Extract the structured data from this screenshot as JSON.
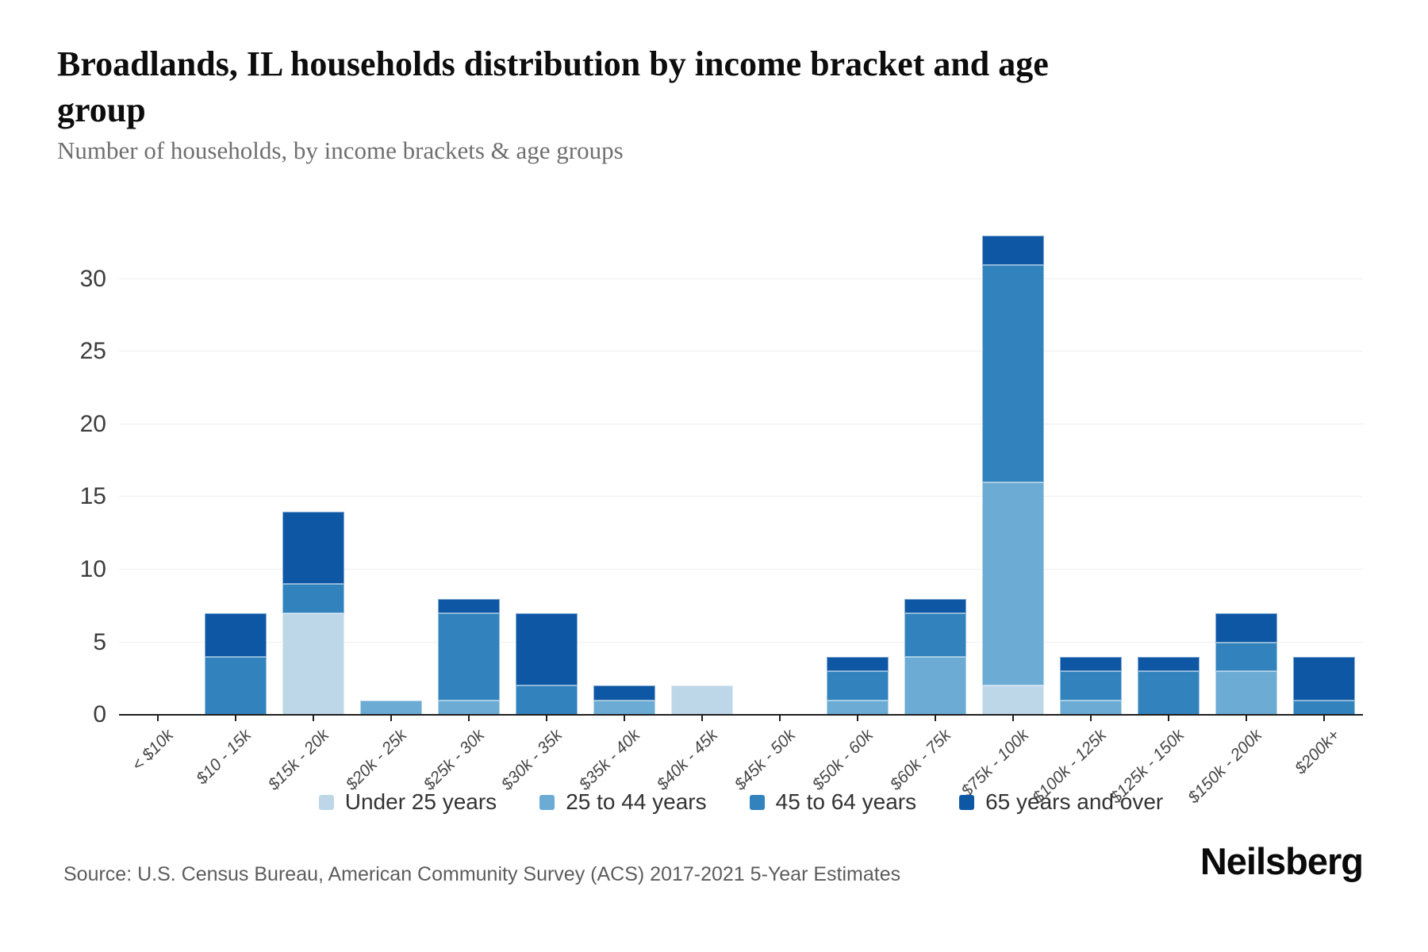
{
  "header": {
    "title": "Broadlands, IL households distribution by income bracket and age group",
    "subtitle": "Number of households, by income brackets & age groups"
  },
  "chart_data": {
    "type": "bar",
    "subtype": "stacked",
    "title": "Broadlands, IL households distribution by income bracket and age group",
    "xlabel": "",
    "ylabel": "",
    "ylim": [
      0,
      33
    ],
    "yticks": [
      0,
      5,
      10,
      15,
      20,
      25,
      30
    ],
    "grid": "horizontal",
    "legend_position": "bottom-center",
    "categories": [
      "< $10k",
      "$10 - 15k",
      "$15k - 20k",
      "$20k - 25k",
      "$25k - 30k",
      "$30k - 35k",
      "$35k - 40k",
      "$40k - 45k",
      "$45k - 50k",
      "$50k - 60k",
      "$60k - 75k",
      "$75k - 100k",
      "$100k - 125k",
      "$125k - 150k",
      "$150k - 200k",
      "$200k+"
    ],
    "series": [
      {
        "name": "Under 25 years",
        "color": "#bdd7e8",
        "values": [
          0,
          0,
          7,
          0,
          0,
          0,
          0,
          2,
          0,
          0,
          0,
          2,
          0,
          0,
          0,
          0
        ]
      },
      {
        "name": "25 to 44 years",
        "color": "#6babd4",
        "values": [
          0,
          0,
          0,
          1,
          1,
          0,
          1,
          0,
          0,
          1,
          4,
          14,
          1,
          0,
          3,
          0
        ]
      },
      {
        "name": "45 to 64 years",
        "color": "#3182bd",
        "values": [
          0,
          4,
          2,
          0,
          6,
          2,
          0,
          0,
          0,
          2,
          3,
          15,
          2,
          3,
          2,
          1
        ]
      },
      {
        "name": "65 years and over",
        "color": "#0e57a5",
        "values": [
          0,
          3,
          5,
          0,
          1,
          5,
          1,
          0,
          0,
          1,
          1,
          2,
          1,
          1,
          2,
          3
        ]
      }
    ],
    "totals": [
      0,
      7,
      14,
      1,
      8,
      7,
      2,
      2,
      0,
      4,
      8,
      33,
      4,
      4,
      7,
      4
    ]
  },
  "colors": {
    "axis": "#1f1f1f",
    "gridline": "#eeeeee",
    "tick_label": "#3c3c3c"
  },
  "footer": {
    "source": "Source: U.S. Census Bureau, American Community Survey (ACS) 2017-2021 5-Year Estimates",
    "logo": "Neilsberg"
  }
}
